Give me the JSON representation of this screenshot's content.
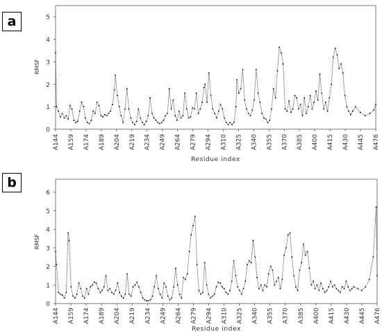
{
  "panels": [
    {
      "label": "a",
      "ylabel": "RMSF",
      "xlabel": "Residue index"
    },
    {
      "label": "b",
      "ylabel": "RMSF",
      "xlabel": "Residue index"
    }
  ],
  "chart_data": [
    {
      "type": "line",
      "xlabel": "Residue index",
      "ylabel": "RMSF",
      "ylim": [
        0,
        5.5
      ],
      "yticks": [
        0,
        1,
        2,
        3,
        4,
        5
      ],
      "x_start": 144,
      "x_end": 476,
      "xtick_labels": [
        "A144",
        "A159",
        "A174",
        "A189",
        "A204",
        "A219",
        "A234",
        "A249",
        "A264",
        "A279",
        "A294",
        "A310",
        "A325",
        "A340",
        "A355",
        "A370",
        "A385",
        "A400",
        "A415",
        "A430",
        "A445",
        "A476"
      ],
      "points": [
        [
          144,
          3.4
        ],
        [
          145,
          1.0
        ],
        [
          147,
          0.8
        ],
        [
          149,
          0.55
        ],
        [
          151,
          0.7
        ],
        [
          153,
          0.5
        ],
        [
          155,
          0.6
        ],
        [
          157,
          0.45
        ],
        [
          159,
          1.05
        ],
        [
          161,
          0.9
        ],
        [
          163,
          0.4
        ],
        [
          165,
          0.3
        ],
        [
          167,
          0.35
        ],
        [
          169,
          0.8
        ],
        [
          171,
          1.2
        ],
        [
          173,
          1.0
        ],
        [
          175,
          0.5
        ],
        [
          177,
          0.3
        ],
        [
          179,
          0.25
        ],
        [
          181,
          0.4
        ],
        [
          183,
          0.8
        ],
        [
          185,
          0.7
        ],
        [
          187,
          1.2
        ],
        [
          189,
          1.05
        ],
        [
          191,
          0.6
        ],
        [
          193,
          0.55
        ],
        [
          195,
          0.65
        ],
        [
          197,
          0.6
        ],
        [
          199,
          0.7
        ],
        [
          201,
          0.8
        ],
        [
          203,
          1.1
        ],
        [
          205,
          1.75
        ],
        [
          206,
          2.4
        ],
        [
          208,
          1.5
        ],
        [
          210,
          1.0
        ],
        [
          212,
          0.6
        ],
        [
          214,
          0.3
        ],
        [
          216,
          0.9
        ],
        [
          218,
          1.8
        ],
        [
          220,
          0.9
        ],
        [
          222,
          0.5
        ],
        [
          224,
          0.3
        ],
        [
          226,
          0.2
        ],
        [
          228,
          0.35
        ],
        [
          230,
          0.9
        ],
        [
          232,
          0.5
        ],
        [
          234,
          0.3
        ],
        [
          236,
          0.2
        ],
        [
          238,
          0.35
        ],
        [
          240,
          0.6
        ],
        [
          242,
          1.4
        ],
        [
          244,
          0.7
        ],
        [
          246,
          0.5
        ],
        [
          248,
          0.4
        ],
        [
          250,
          0.3
        ],
        [
          252,
          0.25
        ],
        [
          254,
          0.3
        ],
        [
          256,
          0.4
        ],
        [
          258,
          0.6
        ],
        [
          260,
          0.7
        ],
        [
          262,
          1.8
        ],
        [
          264,
          0.9
        ],
        [
          266,
          1.3
        ],
        [
          268,
          0.6
        ],
        [
          270,
          0.4
        ],
        [
          272,
          0.8
        ],
        [
          274,
          0.5
        ],
        [
          276,
          0.6
        ],
        [
          278,
          1.6
        ],
        [
          280,
          0.9
        ],
        [
          282,
          0.5
        ],
        [
          284,
          0.55
        ],
        [
          286,
          0.95
        ],
        [
          288,
          0.9
        ],
        [
          290,
          1.6
        ],
        [
          292,
          0.7
        ],
        [
          294,
          0.9
        ],
        [
          296,
          1.2
        ],
        [
          298,
          1.85
        ],
        [
          299,
          2.0
        ],
        [
          301,
          1.2
        ],
        [
          303,
          2.5
        ],
        [
          305,
          1.5
        ],
        [
          307,
          0.9
        ],
        [
          309,
          0.7
        ],
        [
          311,
          0.5
        ],
        [
          313,
          0.8
        ],
        [
          315,
          1.1
        ],
        [
          317,
          0.9
        ],
        [
          319,
          0.5
        ],
        [
          321,
          0.3
        ],
        [
          323,
          0.2
        ],
        [
          325,
          0.3
        ],
        [
          327,
          0.2
        ],
        [
          329,
          0.3
        ],
        [
          331,
          1.0
        ],
        [
          332,
          2.2
        ],
        [
          334,
          1.6
        ],
        [
          336,
          1.8
        ],
        [
          338,
          2.65
        ],
        [
          340,
          1.3
        ],
        [
          342,
          0.9
        ],
        [
          344,
          0.7
        ],
        [
          346,
          0.6
        ],
        [
          348,
          0.85
        ],
        [
          350,
          1.3
        ],
        [
          352,
          2.65
        ],
        [
          354,
          1.6
        ],
        [
          356,
          1.2
        ],
        [
          358,
          0.7
        ],
        [
          360,
          0.5
        ],
        [
          362,
          0.45
        ],
        [
          364,
          0.3
        ],
        [
          366,
          0.4
        ],
        [
          368,
          0.9
        ],
        [
          370,
          1.8
        ],
        [
          372,
          1.4
        ],
        [
          374,
          2.6
        ],
        [
          376,
          3.65
        ],
        [
          378,
          3.4
        ],
        [
          380,
          2.9
        ],
        [
          382,
          0.9
        ],
        [
          384,
          0.8
        ],
        [
          386,
          1.25
        ],
        [
          388,
          0.75
        ],
        [
          390,
          0.9
        ],
        [
          392,
          1.5
        ],
        [
          394,
          1.4
        ],
        [
          396,
          0.9
        ],
        [
          398,
          1.1
        ],
        [
          400,
          0.6
        ],
        [
          402,
          1.4
        ],
        [
          404,
          0.7
        ],
        [
          406,
          1.0
        ],
        [
          408,
          1.5
        ],
        [
          410,
          0.9
        ],
        [
          412,
          1.2
        ],
        [
          414,
          1.7
        ],
        [
          416,
          1.3
        ],
        [
          418,
          2.45
        ],
        [
          420,
          1.6
        ],
        [
          422,
          0.9
        ],
        [
          424,
          1.2
        ],
        [
          426,
          0.8
        ],
        [
          428,
          1.4
        ],
        [
          430,
          2.0
        ],
        [
          432,
          3.2
        ],
        [
          434,
          3.6
        ],
        [
          436,
          3.3
        ],
        [
          438,
          2.7
        ],
        [
          440,
          2.9
        ],
        [
          442,
          2.5
        ],
        [
          444,
          1.5
        ],
        [
          446,
          1.0
        ],
        [
          448,
          0.8
        ],
        [
          450,
          0.65
        ],
        [
          452,
          0.8
        ],
        [
          455,
          1.0
        ],
        [
          460,
          0.75
        ],
        [
          465,
          0.6
        ],
        [
          470,
          0.7
        ],
        [
          474,
          0.85
        ],
        [
          476,
          1.1
        ]
      ]
    },
    {
      "type": "line",
      "xlabel": "Residue index",
      "ylabel": "RMSF",
      "ylim": [
        0,
        6.7
      ],
      "yticks": [
        0,
        1,
        2,
        3,
        4,
        5,
        6
      ],
      "x_start": 144,
      "x_end": 476,
      "xtick_labels": [
        "A144",
        "A159",
        "A174",
        "A189",
        "A204",
        "A219",
        "A234",
        "A249",
        "A264",
        "A279",
        "A294",
        "A310",
        "A325",
        "A340",
        "A355",
        "A370",
        "A385",
        "A400",
        "A415",
        "A430",
        "A445",
        "A476"
      ],
      "points": [
        [
          144,
          2.8
        ],
        [
          145,
          2.1
        ],
        [
          147,
          0.6
        ],
        [
          149,
          0.5
        ],
        [
          151,
          0.45
        ],
        [
          153,
          0.3
        ],
        [
          155,
          0.6
        ],
        [
          157,
          3.8
        ],
        [
          158,
          3.4
        ],
        [
          160,
          0.9
        ],
        [
          162,
          0.4
        ],
        [
          164,
          0.3
        ],
        [
          166,
          0.5
        ],
        [
          168,
          1.1
        ],
        [
          170,
          0.8
        ],
        [
          172,
          0.4
        ],
        [
          174,
          0.3
        ],
        [
          176,
          0.8
        ],
        [
          178,
          0.5
        ],
        [
          180,
          0.9
        ],
        [
          182,
          1.0
        ],
        [
          184,
          1.15
        ],
        [
          186,
          1.1
        ],
        [
          188,
          0.8
        ],
        [
          190,
          0.6
        ],
        [
          192,
          0.7
        ],
        [
          194,
          0.9
        ],
        [
          196,
          1.5
        ],
        [
          198,
          0.7
        ],
        [
          200,
          0.8
        ],
        [
          202,
          0.6
        ],
        [
          204,
          0.5
        ],
        [
          206,
          0.7
        ],
        [
          208,
          1.1
        ],
        [
          210,
          0.6
        ],
        [
          212,
          0.4
        ],
        [
          214,
          0.3
        ],
        [
          216,
          0.5
        ],
        [
          218,
          1.6
        ],
        [
          220,
          0.5
        ],
        [
          222,
          0.4
        ],
        [
          224,
          0.9
        ],
        [
          226,
          1.0
        ],
        [
          228,
          1.15
        ],
        [
          230,
          0.9
        ],
        [
          232,
          0.6
        ],
        [
          234,
          0.3
        ],
        [
          236,
          0.2
        ],
        [
          238,
          0.15
        ],
        [
          240,
          0.15
        ],
        [
          242,
          0.2
        ],
        [
          244,
          0.4
        ],
        [
          246,
          0.9
        ],
        [
          248,
          1.5
        ],
        [
          250,
          0.8
        ],
        [
          252,
          0.5
        ],
        [
          254,
          0.3
        ],
        [
          256,
          1.1
        ],
        [
          258,
          0.9
        ],
        [
          260,
          0.4
        ],
        [
          262,
          0.2
        ],
        [
          264,
          0.3
        ],
        [
          266,
          0.9
        ],
        [
          268,
          1.9
        ],
        [
          270,
          1.0
        ],
        [
          272,
          0.5
        ],
        [
          274,
          0.3
        ],
        [
          276,
          1.4
        ],
        [
          278,
          1.3
        ],
        [
          280,
          1.6
        ],
        [
          282,
          2.8
        ],
        [
          284,
          3.7
        ],
        [
          286,
          4.2
        ],
        [
          288,
          4.7
        ],
        [
          290,
          2.1
        ],
        [
          292,
          0.7
        ],
        [
          294,
          0.5
        ],
        [
          296,
          0.6
        ],
        [
          298,
          2.2
        ],
        [
          300,
          1.0
        ],
        [
          302,
          0.5
        ],
        [
          304,
          0.3
        ],
        [
          306,
          0.4
        ],
        [
          308,
          0.5
        ],
        [
          310,
          0.9
        ],
        [
          312,
          1.15
        ],
        [
          314,
          1.1
        ],
        [
          316,
          0.9
        ],
        [
          318,
          0.8
        ],
        [
          320,
          0.6
        ],
        [
          322,
          0.5
        ],
        [
          324,
          0.7
        ],
        [
          326,
          1.2
        ],
        [
          328,
          2.3
        ],
        [
          330,
          1.5
        ],
        [
          332,
          0.9
        ],
        [
          334,
          0.7
        ],
        [
          336,
          0.5
        ],
        [
          338,
          0.8
        ],
        [
          340,
          1.2
        ],
        [
          342,
          2.1
        ],
        [
          344,
          2.3
        ],
        [
          346,
          2.2
        ],
        [
          348,
          3.4
        ],
        [
          350,
          2.5
        ],
        [
          352,
          1.4
        ],
        [
          354,
          0.8
        ],
        [
          356,
          1.0
        ],
        [
          358,
          0.7
        ],
        [
          360,
          1.0
        ],
        [
          362,
          0.9
        ],
        [
          364,
          1.6
        ],
        [
          366,
          2.0
        ],
        [
          368,
          1.8
        ],
        [
          370,
          1.0
        ],
        [
          372,
          1.2
        ],
        [
          374,
          1.4
        ],
        [
          376,
          0.8
        ],
        [
          378,
          1.3
        ],
        [
          380,
          2.6
        ],
        [
          382,
          3.0
        ],
        [
          384,
          3.7
        ],
        [
          386,
          3.8
        ],
        [
          388,
          2.5
        ],
        [
          390,
          1.5
        ],
        [
          392,
          0.9
        ],
        [
          394,
          0.7
        ],
        [
          396,
          1.8
        ],
        [
          398,
          2.2
        ],
        [
          400,
          3.2
        ],
        [
          402,
          2.6
        ],
        [
          404,
          2.8
        ],
        [
          406,
          1.9
        ],
        [
          408,
          1.0
        ],
        [
          410,
          1.2
        ],
        [
          412,
          0.8
        ],
        [
          414,
          1.0
        ],
        [
          416,
          0.7
        ],
        [
          418,
          1.1
        ],
        [
          420,
          0.8
        ],
        [
          422,
          0.6
        ],
        [
          424,
          0.7
        ],
        [
          426,
          0.9
        ],
        [
          428,
          1.2
        ],
        [
          430,
          0.9
        ],
        [
          432,
          1.0
        ],
        [
          434,
          0.8
        ],
        [
          436,
          0.7
        ],
        [
          438,
          0.6
        ],
        [
          440,
          0.9
        ],
        [
          442,
          0.8
        ],
        [
          444,
          1.2
        ],
        [
          446,
          0.9
        ],
        [
          448,
          0.7
        ],
        [
          450,
          0.8
        ],
        [
          452,
          0.9
        ],
        [
          456,
          0.8
        ],
        [
          460,
          0.7
        ],
        [
          464,
          0.9
        ],
        [
          468,
          1.3
        ],
        [
          472,
          2.5
        ],
        [
          475,
          5.2
        ],
        [
          476,
          1.5
        ]
      ]
    }
  ]
}
